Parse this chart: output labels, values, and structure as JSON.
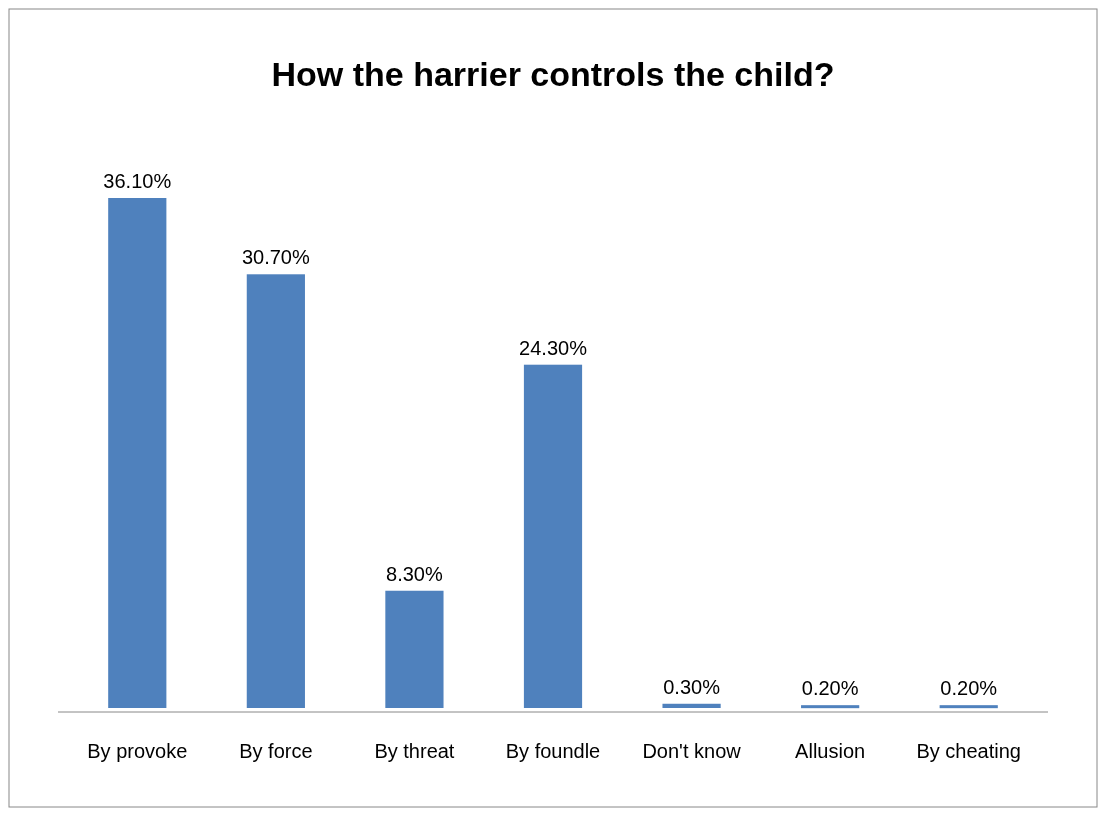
{
  "chart_data": {
    "type": "bar",
    "title": "How the harrier controls the child?",
    "categories": [
      "By provoke",
      "By force",
      "By threat",
      "By foundle",
      "Don't know",
      "Allusion",
      "By cheating"
    ],
    "values": [
      36.1,
      30.7,
      8.3,
      24.3,
      0.3,
      0.2,
      0.2
    ],
    "value_labels": [
      "36.10%",
      "30.70%",
      "8.30%",
      "24.30%",
      "0.30%",
      "0.20%",
      "0.20%"
    ],
    "color": "#4f81bd"
  }
}
